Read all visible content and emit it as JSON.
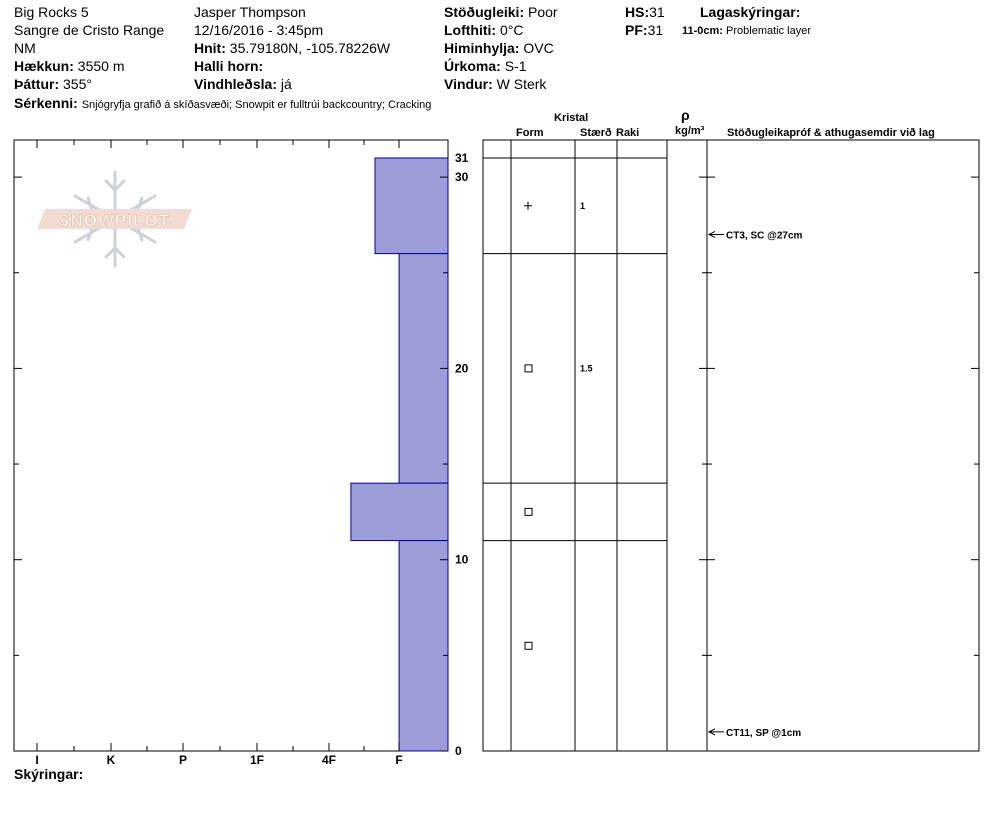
{
  "header": {
    "location": "Big Rocks 5",
    "range": "Sangre de Cristo Range",
    "state": "NM",
    "elevation_label": "Hækkun:",
    "elevation_value": "3550 m",
    "aspect_label": "Þáttur:",
    "aspect_value": "355°",
    "observer": "Jasper Thompson",
    "datetime": "12/16/2016 - 3:45pm",
    "coords_label": "Hnit:",
    "coords_value": "35.79180N, -105.78226W",
    "slope_label": "Halli horn:",
    "slope_value": "",
    "wind_load_label": "Vindhleðsla:",
    "wind_load_value": "já",
    "stability_label": "Stöðugleiki:",
    "stability_value": "Poor",
    "air_temp_label": "Lofthiti:",
    "air_temp_value": "0°C",
    "sky_label": "Himinhylja:",
    "sky_value": "OVC",
    "precip_label": "Úrkoma:",
    "precip_value": "S-1",
    "wind_label": "Vindur:",
    "wind_value": "W Sterk",
    "hs_label": "HS:",
    "hs_value": "31",
    "pf_label": "PF:",
    "pf_value": "31",
    "layer_notes_label": "Lagaskýringar:",
    "layer_note_range": "11-0cm:",
    "layer_note_text": "Problematic layer",
    "features_label": "Sérkenni:",
    "features_value": "Snjógryfja grafið á skíðasvæði;  Snowpit er fulltrúi backcountry;  Cracking"
  },
  "logo_text": "SNOWPILOT",
  "table_headers": {
    "crystal": "Kristal",
    "form": "Form",
    "size": "Stærð",
    "moisture": "Raki",
    "density_symbol": "ρ",
    "density_unit": "kg/m³",
    "tests": "Stöðugleikapróf & athugasemdir við lag"
  },
  "footer": {
    "notes_label": "Skýringar:"
  },
  "chart_data": {
    "type": "bar",
    "orientation": "horizontal",
    "hardness_scale": [
      "I",
      "K",
      "P",
      "1F",
      "4F",
      "F"
    ],
    "depth_ticks": [
      0,
      10,
      20,
      30
    ],
    "top_depth_label": "31",
    "ylim": [
      0,
      31
    ],
    "layers": [
      {
        "top": 31,
        "bottom": 26,
        "hardness": 1.0,
        "form": "plus",
        "size": "1"
      },
      {
        "top": 26,
        "bottom": 14,
        "hardness": 0.67,
        "form": "square",
        "size": "1.5"
      },
      {
        "top": 14,
        "bottom": 11,
        "hardness": 1.33,
        "form": "square",
        "size": ""
      },
      {
        "top": 11,
        "bottom": 0,
        "hardness": 0.67,
        "form": "square",
        "size": ""
      }
    ],
    "tests": [
      {
        "depth": 27,
        "label": "CT3, SC @27cm"
      },
      {
        "depth": 1,
        "label": "CT11, SP @1cm"
      }
    ],
    "colors": {
      "fill": "#9c9cd6",
      "stroke": "#0000aa"
    }
  }
}
